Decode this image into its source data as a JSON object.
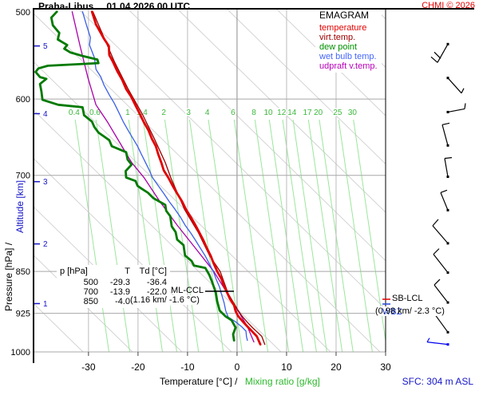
{
  "header": {
    "station": "Praha-Libus",
    "datetime": "01.04.2026 00 UTC",
    "copyright": "CHMI © 2026"
  },
  "legend": {
    "title": "EMAGRAM",
    "items": [
      {
        "label": "temperature",
        "color": "#e60000"
      },
      {
        "label": "virt.temp.",
        "color": "#a00000"
      },
      {
        "label": "dew point",
        "color": "#009000"
      },
      {
        "label": "wet bulb temp.",
        "color": "#4466ff"
      },
      {
        "label": "udpraft v.temp.",
        "color": "#bb00bb"
      }
    ]
  },
  "axis_labels": {
    "left_black": "Pressure [hPa]  /",
    "left_blue": "Altitude [km]",
    "bottom_black": "Temperature [°C]  /",
    "bottom_green": "Mixing ratio [g/kg]"
  },
  "table": {
    "headers": [
      "p [hPa]",
      "T",
      "Td [°C]"
    ],
    "rows": [
      [
        "500",
        "-29.3",
        "-36.4"
      ],
      [
        "700",
        "-13.9",
        "-22.0"
      ],
      [
        "850",
        "-4.0",
        "-5.1"
      ]
    ]
  },
  "annotations": {
    "ml_ccl_name": "ML-CCL",
    "ml_ccl_detail": "(1.16 km/ -1.6 °C)",
    "sb_lcl_name": "SB-LCL",
    "sb_lcl_detail": "(0.98 km/ -2.3 °C)",
    "wbz": "WBZ"
  },
  "footer": {
    "sfc": "SFC: 304 m ASL"
  },
  "chart_data": {
    "type": "line",
    "subtype": "thermodynamic-sounding-emagram",
    "x_axis": {
      "label": "Temperature [°C]",
      "t_min": -41.1,
      "t_max": 30.0,
      "ticks": [
        -30,
        -20,
        -10,
        0,
        10,
        20,
        30
      ]
    },
    "p_axis": {
      "label": "Pressure [hPa]",
      "p_top": 500,
      "p_bottom": 1000,
      "ticks": [
        500,
        600,
        700,
        850,
        925,
        1000
      ]
    },
    "altitude_marks": [
      {
        "km": "1",
        "p": 907
      },
      {
        "km": "2",
        "p": 804
      },
      {
        "km": "3",
        "p": 709
      },
      {
        "km": "4",
        "p": 618
      },
      {
        "km": "5",
        "p": 539
      }
    ],
    "mixing_ratio": {
      "unit": "g/kg",
      "labels": [
        {
          "v": "0.4",
          "t": -32.9
        },
        {
          "v": "0.6",
          "t": -28.7
        },
        {
          "v": "1",
          "t": -22.1
        },
        {
          "v": "1.4",
          "t": -19.2
        },
        {
          "v": "2",
          "t": -14.8
        },
        {
          "v": "3",
          "t": -9.8
        },
        {
          "v": "4",
          "t": -6.0
        },
        {
          "v": "6",
          "t": -0.8
        },
        {
          "v": "8",
          "t": 3.4
        },
        {
          "v": "10",
          "t": 6.3
        },
        {
          "v": "12",
          "t": 9.0
        },
        {
          "v": "14",
          "t": 11.1
        },
        {
          "v": "17",
          "t": 14.2
        },
        {
          "v": "20",
          "t": 16.4
        },
        {
          "v": "25",
          "t": 20.3
        },
        {
          "v": "30",
          "t": 23.3
        }
      ]
    },
    "series": [
      {
        "name": "udpraft-vtemp",
        "color": "#aa00aa",
        "width": 1.3,
        "points": [
          [
            -33.3,
            503
          ],
          [
            -31.7,
            539
          ],
          [
            -30.1,
            575
          ],
          [
            -28.5,
            607
          ],
          [
            -26.1,
            629
          ],
          [
            -23.7,
            655
          ],
          [
            -21.3,
            682
          ],
          [
            -18.8,
            703
          ],
          [
            -15.6,
            738
          ],
          [
            -12.1,
            774
          ],
          [
            -8.4,
            811
          ],
          [
            -4.7,
            850
          ],
          [
            -1.9,
            889
          ],
          [
            0.5,
            925
          ],
          [
            2.1,
            950
          ],
          [
            3.4,
            980
          ]
        ]
      },
      {
        "name": "wet-bulb",
        "color": "#3a5fe8",
        "width": 1.3,
        "points": [
          [
            -31.2,
            503
          ],
          [
            -30.4,
            517
          ],
          [
            -29.6,
            530
          ],
          [
            -29.8,
            538
          ],
          [
            -28.8,
            552
          ],
          [
            -28.5,
            565
          ],
          [
            -27.5,
            574
          ],
          [
            -26.9,
            583
          ],
          [
            -25.8,
            595
          ],
          [
            -24.8,
            605
          ],
          [
            -24.0,
            615
          ],
          [
            -23.0,
            628
          ],
          [
            -22.1,
            638
          ],
          [
            -21.1,
            649
          ],
          [
            -20.1,
            660
          ],
          [
            -19.3,
            671
          ],
          [
            -18.5,
            682
          ],
          [
            -17.7,
            693
          ],
          [
            -17.1,
            703
          ],
          [
            -15.9,
            715
          ],
          [
            -14.8,
            726
          ],
          [
            -13.7,
            738
          ],
          [
            -12.6,
            749
          ],
          [
            -11.4,
            762
          ],
          [
            -10.5,
            774
          ],
          [
            -9.3,
            787
          ],
          [
            -8.4,
            798
          ],
          [
            -7.4,
            811
          ],
          [
            -6.4,
            824
          ],
          [
            -5.6,
            837
          ],
          [
            -4.8,
            850
          ],
          [
            -4.2,
            864
          ],
          [
            -3.5,
            878
          ],
          [
            -3.1,
            891
          ],
          [
            -2.6,
            906
          ],
          [
            -2.3,
            920
          ],
          [
            -1.8,
            932
          ],
          [
            -0.3,
            941
          ],
          [
            1.0,
            951
          ],
          [
            1.8,
            959
          ],
          [
            1.9,
            969
          ],
          [
            2.1,
            977
          ]
        ]
      },
      {
        "name": "virtual-temperature",
        "color": "#990000",
        "width": 1.3,
        "points": [
          [
            -29.1,
            503
          ],
          [
            -24.8,
            556
          ],
          [
            -22.0,
            588
          ],
          [
            -19.1,
            619
          ],
          [
            -16.7,
            650
          ],
          [
            -14.5,
            682
          ],
          [
            -13.4,
            703
          ],
          [
            -10.6,
            750
          ],
          [
            -7.8,
            786
          ],
          [
            -5.5,
            824
          ],
          [
            -3.4,
            850
          ],
          [
            -1.8,
            889
          ],
          [
            0.3,
            921
          ],
          [
            1.0,
            930
          ],
          [
            2.1,
            942
          ],
          [
            3.1,
            952
          ],
          [
            4.1,
            961
          ],
          [
            5.0,
            969
          ],
          [
            5.6,
            985
          ]
        ]
      },
      {
        "name": "temperature",
        "color": "#e00000",
        "width": 2.8,
        "points": [
          [
            -29.3,
            503
          ],
          [
            -28.5,
            516
          ],
          [
            -26.9,
            531
          ],
          [
            -25.9,
            539
          ],
          [
            -25.8,
            549
          ],
          [
            -25.1,
            556
          ],
          [
            -24.2,
            567
          ],
          [
            -23.2,
            577
          ],
          [
            -22.4,
            588
          ],
          [
            -21.4,
            597
          ],
          [
            -20.5,
            608
          ],
          [
            -19.6,
            619
          ],
          [
            -18.8,
            629
          ],
          [
            -17.9,
            639
          ],
          [
            -17.2,
            650
          ],
          [
            -16.4,
            660
          ],
          [
            -15.9,
            671
          ],
          [
            -15.3,
            682
          ],
          [
            -14.8,
            693
          ],
          [
            -13.9,
            703
          ],
          [
            -13.0,
            715
          ],
          [
            -12.1,
            726
          ],
          [
            -11.1,
            738
          ],
          [
            -10.3,
            750
          ],
          [
            -9.3,
            762
          ],
          [
            -8.4,
            774
          ],
          [
            -7.6,
            786
          ],
          [
            -6.8,
            798
          ],
          [
            -6.1,
            811
          ],
          [
            -5.3,
            824
          ],
          [
            -4.7,
            837
          ],
          [
            -4.0,
            850
          ],
          [
            -3.2,
            862
          ],
          [
            -2.6,
            876
          ],
          [
            -1.9,
            889
          ],
          [
            -1.4,
            899
          ],
          [
            -0.6,
            910
          ],
          [
            -0.3,
            921
          ],
          [
            0.2,
            930
          ],
          [
            1.3,
            942
          ],
          [
            2.3,
            952
          ],
          [
            3.2,
            961
          ],
          [
            4.0,
            969
          ],
          [
            4.7,
            985
          ]
        ]
      },
      {
        "name": "dew-point",
        "color": "#007a00",
        "width": 2.8,
        "points": [
          [
            -36.4,
            503
          ],
          [
            -37.5,
            509
          ],
          [
            -37.2,
            517
          ],
          [
            -35.9,
            525
          ],
          [
            -36.2,
            532
          ],
          [
            -34.3,
            538
          ],
          [
            -34.9,
            542
          ],
          [
            -33.7,
            546
          ],
          [
            -31.2,
            550
          ],
          [
            -28.2,
            554
          ],
          [
            -28.0,
            558
          ],
          [
            -38.2,
            561
          ],
          [
            -40.1,
            564
          ],
          [
            -40.7,
            568
          ],
          [
            -39.8,
            574
          ],
          [
            -38.5,
            576
          ],
          [
            -39.8,
            582
          ],
          [
            -39.5,
            591
          ],
          [
            -39.3,
            601
          ],
          [
            -36.1,
            607
          ],
          [
            -31.2,
            610
          ],
          [
            -30.9,
            620
          ],
          [
            -29.3,
            628
          ],
          [
            -28.8,
            635
          ],
          [
            -28.0,
            642
          ],
          [
            -25.8,
            652
          ],
          [
            -25.3,
            660
          ],
          [
            -22.4,
            668
          ],
          [
            -22.1,
            678
          ],
          [
            -21.3,
            685
          ],
          [
            -22.5,
            694
          ],
          [
            -22.4,
            703
          ],
          [
            -20.5,
            708
          ],
          [
            -20.1,
            715
          ],
          [
            -19.3,
            719
          ],
          [
            -18.0,
            725
          ],
          [
            -16.9,
            733
          ],
          [
            -14.5,
            743
          ],
          [
            -14.3,
            752
          ],
          [
            -13.5,
            760
          ],
          [
            -13.2,
            776
          ],
          [
            -12.4,
            785
          ],
          [
            -12.1,
            797
          ],
          [
            -10.8,
            806
          ],
          [
            -10.5,
            823
          ],
          [
            -9.2,
            832
          ],
          [
            -8.7,
            840
          ],
          [
            -6.4,
            844
          ],
          [
            -5.6,
            856
          ],
          [
            -5.0,
            869
          ],
          [
            -4.3,
            887
          ],
          [
            -4.0,
            903
          ],
          [
            -3.5,
            920
          ],
          [
            -2.3,
            931
          ],
          [
            -1.1,
            938
          ],
          [
            -0.3,
            952
          ],
          [
            -0.8,
            965
          ],
          [
            -0.6,
            977
          ]
        ]
      }
    ],
    "markers": {
      "ml_ccl_line": [
        257,
        365,
        293,
        365
      ],
      "sb_lcl_tick_color": "#e60000",
      "sb_lcl_tick": [
        479,
        375,
        489,
        375
      ],
      "wbz_tick_color": "#2244dd",
      "wbz_tick": [
        479,
        381,
        489,
        381
      ]
    },
    "wind_barbs": [
      {
        "p": 537,
        "color": "#000000",
        "segs": [
          [
            0,
            0,
            -13,
            23
          ],
          [
            -13,
            23,
            -21,
            16
          ],
          [
            -9,
            18,
            -17,
            10
          ]
        ]
      },
      {
        "p": 575,
        "color": "#000000",
        "segs": [
          [
            0,
            0,
            17,
            19
          ],
          [
            17,
            19,
            20,
            13
          ]
        ]
      },
      {
        "p": 616,
        "color": "#000000",
        "segs": [
          [
            0,
            0,
            21,
            -4
          ],
          [
            21,
            -4,
            22,
            -11
          ]
        ]
      },
      {
        "p": 659,
        "color": "#000000",
        "segs": [
          [
            0,
            0,
            -7,
            -26
          ],
          [
            -7,
            -26,
            2,
            -28
          ]
        ]
      },
      {
        "p": 702,
        "color": "#000000",
        "segs": [
          [
            0,
            0,
            -4,
            -23
          ],
          [
            -4,
            -23,
            5,
            -24
          ]
        ]
      },
      {
        "p": 751,
        "color": "#000000",
        "segs": [
          [
            0,
            0,
            -9,
            -22
          ],
          [
            -9,
            -22,
            -1,
            -25
          ]
        ]
      },
      {
        "p": 803,
        "color": "#000000",
        "segs": [
          [
            0,
            0,
            -19,
            -22
          ],
          [
            -19,
            -22,
            -12,
            -30
          ]
        ]
      },
      {
        "p": 852,
        "color": "#000000",
        "segs": [
          [
            0,
            0,
            -18,
            -23
          ],
          [
            -18,
            -23,
            -11,
            -30
          ]
        ]
      },
      {
        "p": 905,
        "color": "#000000",
        "segs": [
          [
            0,
            0,
            -17,
            -22
          ],
          [
            -17,
            -22,
            -10,
            -29
          ]
        ]
      },
      {
        "p": 961,
        "color": "#000000",
        "segs": [
          [
            0,
            0,
            -16,
            -22
          ],
          [
            -16,
            -22,
            -9,
            -28
          ]
        ]
      },
      {
        "p": 985,
        "color": "#0000ee",
        "segs": [
          [
            0,
            0,
            -26,
            -3
          ],
          [
            -26,
            -3,
            -23,
            -8
          ]
        ]
      }
    ],
    "style": {
      "dry_adiabat_color": "#d4d4d4",
      "mixing_line_color": "#9ce69c",
      "mixing_label_color": "#3db83d",
      "grid_color": "#a8a8a8",
      "zero_line_color": "#8a8a8a",
      "altitude_color": "#1515c8"
    }
  }
}
